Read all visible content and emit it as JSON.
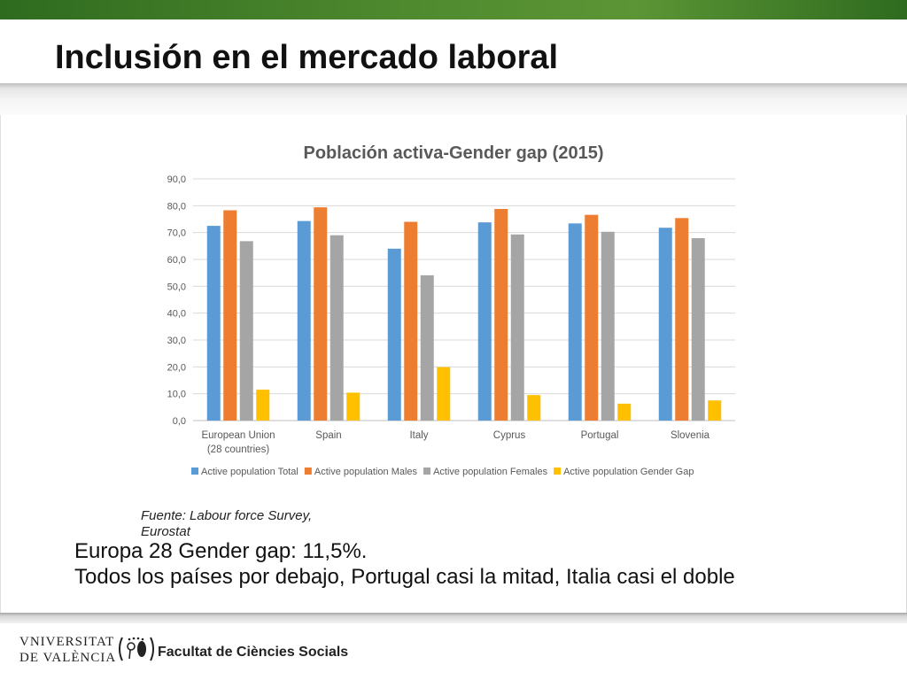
{
  "slide": {
    "title": "Inclusión en el mercado laboral",
    "source": "Fuente: Labour force Survey, Eurostat",
    "summary_line1": "Europa 28 Gender gap: 11,5%.",
    "summary_line2": "Todos los países por debajo, Portugal casi la mitad, Italia casi el doble"
  },
  "footer": {
    "university_line1": "VNIVERSITAT",
    "university_line2": "DE VALÈNCIA",
    "faculty": "Facultat de Ciències Socials"
  },
  "colors": {
    "top_bar": "#4f8a2f",
    "series": [
      "#5b9bd5",
      "#ed7d31",
      "#a5a5a5",
      "#ffc000"
    ],
    "grid": "#d9d9d9",
    "axis_text": "#595959"
  },
  "chart_data": {
    "type": "bar",
    "title": "Población activa-Gender gap (2015)",
    "xlabel": "",
    "ylabel": "",
    "ylim": [
      0,
      90
    ],
    "ytick_step": 10,
    "ytick_labels": [
      "0,0",
      "10,0",
      "20,0",
      "30,0",
      "40,0",
      "50,0",
      "60,0",
      "70,0",
      "80,0",
      "90,0"
    ],
    "grid": true,
    "legend_position": "bottom",
    "categories": [
      [
        "European Union",
        "(28 countries)"
      ],
      [
        "Spain"
      ],
      [
        "Italy"
      ],
      [
        "Cyprus"
      ],
      [
        "Portugal"
      ],
      [
        "Slovenia"
      ]
    ],
    "series": [
      {
        "name": "Active population Total",
        "values": [
          72.5,
          74.3,
          64.0,
          73.8,
          73.4,
          71.8
        ]
      },
      {
        "name": "Active population Males",
        "values": [
          78.3,
          79.4,
          74.0,
          78.8,
          76.6,
          75.4
        ]
      },
      {
        "name": "Active population Females",
        "values": [
          66.8,
          69.0,
          54.1,
          69.3,
          70.3,
          67.9
        ]
      },
      {
        "name": "Active population Gender Gap",
        "values": [
          11.5,
          10.4,
          19.9,
          9.5,
          6.3,
          7.5
        ]
      }
    ]
  }
}
